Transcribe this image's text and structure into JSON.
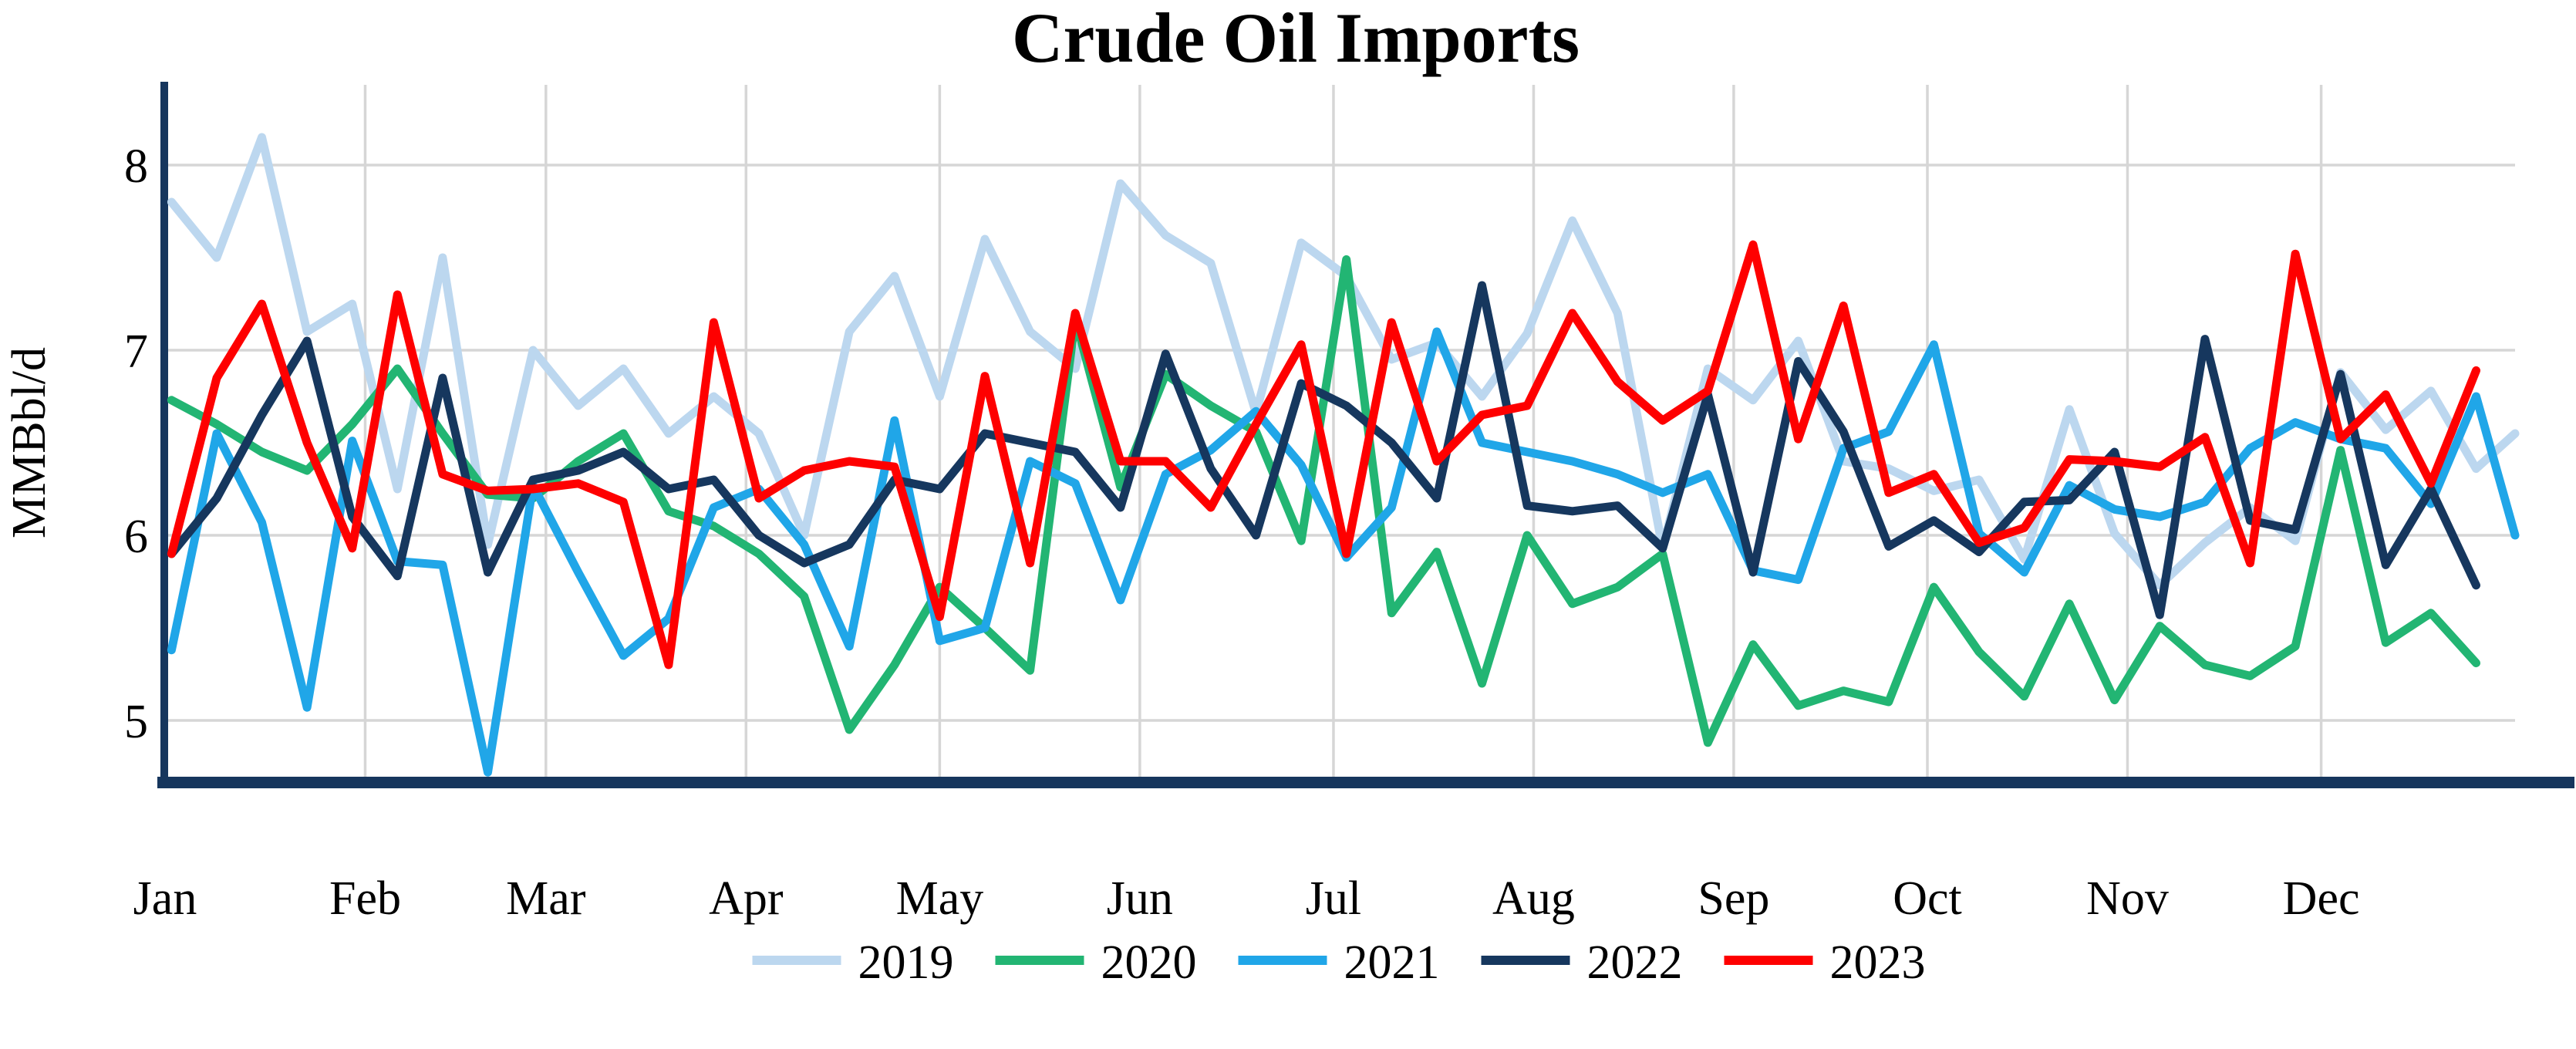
{
  "title": "Crude Oil Imports",
  "y_axis": {
    "label": "MMBbl/d",
    "ticks": [
      "5",
      "6",
      "7",
      "8"
    ],
    "tick_values": [
      5,
      6,
      7,
      8
    ]
  },
  "x_axis": {
    "month_labels": [
      "Jan",
      "Feb",
      "Mar",
      "Apr",
      "May",
      "Jun",
      "Jul",
      "Aug",
      "Sep",
      "Oct",
      "Nov",
      "Dec"
    ]
  },
  "legend": {
    "entries": [
      "2019",
      "2020",
      "2021",
      "2022",
      "2023"
    ]
  },
  "colors": {
    "series_2019": "#BCD7EF",
    "series_2020": "#22B573",
    "series_2021": "#20A6E8",
    "series_2022": "#16375E",
    "series_2023": "#FE0000",
    "gridline": "#D6D6D6",
    "axis": "#16365D",
    "background": "#FFFFFF",
    "text": "#000000"
  },
  "chart_data": {
    "type": "line",
    "title": "Crude Oil Imports",
    "ylabel": "MMBbl/d",
    "xlabel": "",
    "x_unit": "weekly (one point per week, Jan through Dec)",
    "ylim": [
      4.45,
      8.43
    ],
    "grid": "horizontal at integers 5-8, vertical at month starts",
    "legend_position": "bottom center",
    "series": [
      {
        "name": "2019",
        "color": "#BCD7EF",
        "values": [
          7.8,
          7.5,
          8.15,
          7.1,
          7.25,
          6.25,
          7.5,
          5.95,
          7.0,
          6.7,
          6.9,
          6.55,
          6.75,
          6.55,
          6.0,
          7.1,
          7.4,
          6.75,
          7.6,
          7.1,
          6.9,
          7.9,
          7.62,
          7.47,
          6.66,
          7.58,
          7.4,
          6.95,
          7.04,
          6.75,
          7.09,
          7.7,
          7.2,
          5.93,
          6.9,
          6.73,
          7.05,
          6.4,
          6.36,
          6.24,
          6.3,
          5.87,
          6.68,
          6.01,
          5.73,
          5.96,
          6.15,
          5.97,
          6.88,
          6.57,
          6.78,
          6.36,
          6.55
        ]
      },
      {
        "name": "2020",
        "color": "#22B573",
        "values": [
          6.73,
          6.6,
          6.45,
          6.35,
          6.6,
          6.9,
          6.55,
          6.22,
          6.2,
          6.4,
          6.55,
          6.13,
          6.05,
          5.9,
          5.67,
          4.95,
          5.3,
          5.72,
          5.5,
          5.27,
          7.17,
          6.26,
          6.87,
          6.7,
          6.56,
          5.97,
          7.49,
          5.58,
          5.91,
          5.2,
          6.0,
          5.63,
          5.72,
          5.9,
          4.88,
          5.41,
          5.08,
          5.16,
          5.1,
          5.72,
          5.37,
          5.13,
          5.63,
          5.11,
          5.51,
          5.3,
          5.24,
          5.4,
          6.46,
          5.42,
          5.58,
          5.31
        ]
      },
      {
        "name": "2021",
        "color": "#20A6E8",
        "values": [
          5.38,
          6.55,
          6.07,
          5.07,
          6.51,
          5.86,
          5.84,
          4.72,
          6.27,
          5.8,
          5.35,
          5.55,
          6.15,
          6.25,
          5.95,
          5.4,
          6.62,
          5.43,
          5.5,
          6.4,
          6.28,
          5.65,
          6.33,
          6.46,
          6.67,
          6.38,
          5.88,
          6.15,
          7.1,
          6.5,
          6.45,
          6.4,
          6.33,
          6.23,
          6.33,
          5.81,
          5.76,
          6.47,
          6.56,
          7.03,
          6.01,
          5.8,
          6.27,
          6.14,
          6.1,
          6.18,
          6.47,
          6.61,
          6.52,
          6.47,
          6.17,
          6.75,
          6.0
        ]
      },
      {
        "name": "2022",
        "color": "#16375E",
        "values": [
          5.9,
          6.2,
          6.65,
          7.05,
          6.1,
          5.78,
          6.85,
          5.8,
          6.3,
          6.35,
          6.45,
          6.25,
          6.3,
          6.0,
          5.85,
          5.95,
          6.3,
          6.25,
          6.55,
          6.5,
          6.45,
          6.15,
          6.98,
          6.36,
          6.0,
          6.82,
          6.7,
          6.5,
          6.2,
          7.35,
          6.16,
          6.13,
          6.16,
          5.93,
          6.76,
          5.8,
          6.94,
          6.56,
          5.94,
          6.08,
          5.91,
          6.18,
          6.19,
          6.45,
          5.57,
          7.06,
          6.08,
          6.03,
          6.87,
          5.84,
          6.25,
          5.73
        ]
      },
      {
        "name": "2023",
        "color": "#FE0000",
        "values": [
          5.9,
          6.85,
          7.25,
          6.5,
          5.93,
          7.3,
          6.33,
          6.24,
          6.25,
          6.28,
          6.18,
          5.3,
          7.15,
          6.2,
          6.35,
          6.4,
          6.37,
          5.56,
          6.86,
          5.85,
          7.2,
          6.4,
          6.4,
          6.15,
          6.6,
          7.03,
          5.9,
          7.15,
          6.4,
          6.65,
          6.7,
          7.2,
          6.83,
          6.62,
          6.78,
          7.57,
          6.52,
          7.24,
          6.23,
          6.33,
          5.96,
          6.04,
          6.41,
          6.4,
          6.37,
          6.53,
          5.85,
          7.52,
          6.52,
          6.76,
          6.28,
          6.89
        ]
      }
    ]
  }
}
